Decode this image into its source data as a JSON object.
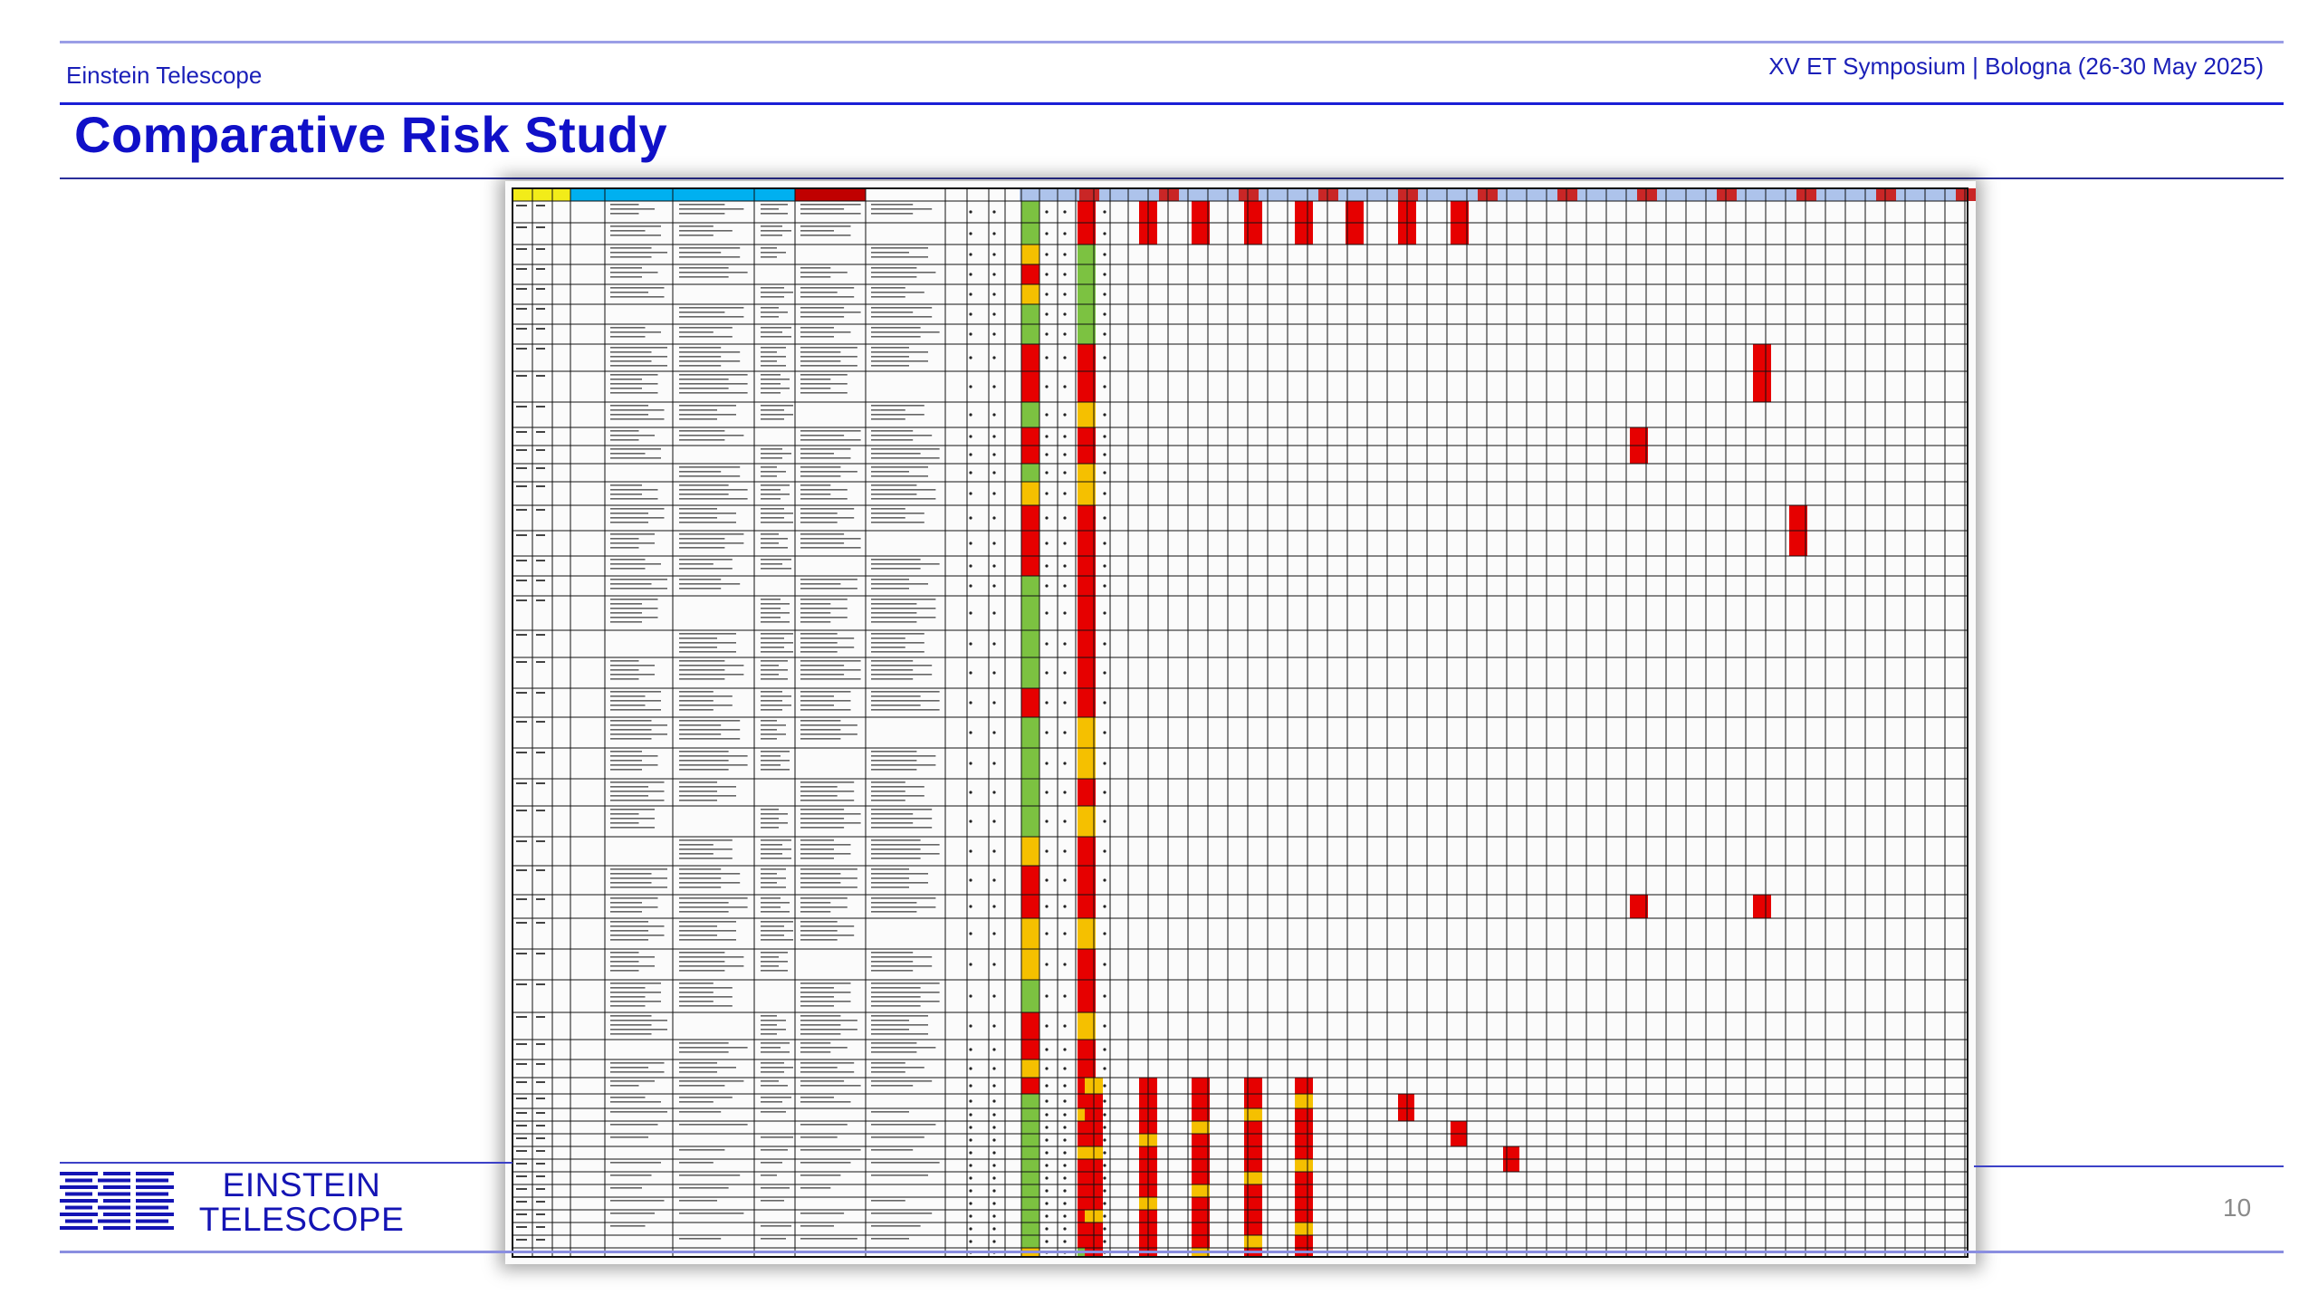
{
  "header": {
    "org_name": "Einstein Telescope",
    "event": "XV ET Symposium | Bologna (26-30 May 2025)"
  },
  "slide": {
    "title": "Comparative Risk Study",
    "page_number": "10"
  },
  "logo": {
    "line1": "EINSTEIN",
    "line2": "TELESCOPE"
  },
  "colors": {
    "accent": "#1010c8",
    "rule": "#3c41c7",
    "risk_red": "#e60000",
    "risk_amber": "#f5c000",
    "risk_green": "#7cc241"
  },
  "risk_sheet": {
    "header_colors": [
      "#f2ec19",
      "#f2ec19",
      "#f2ec19",
      "#00b0f0",
      "#00b0f0",
      "#00b0f0",
      "#00b0f0",
      "#c00000"
    ],
    "col_a_rating": [
      "g",
      "g",
      "a",
      "r",
      "a",
      "g",
      "g",
      "r",
      "r",
      "g",
      "r",
      "r",
      "g",
      "a",
      "r",
      "r",
      "r",
      "g",
      "g",
      "g",
      "g",
      "r",
      "g",
      "g",
      "g",
      "g",
      "a",
      "r",
      "r",
      "a",
      "a",
      "g",
      "r",
      "r",
      "a",
      "r",
      "g",
      "g",
      "g",
      "g",
      "g",
      "g",
      "g",
      "g",
      "g",
      "g"
    ],
    "col_b_rating": [
      "r",
      "r",
      "g",
      "g",
      "g",
      "g",
      "g",
      "r",
      "r",
      "a",
      "r",
      "r",
      "a",
      "a",
      "r",
      "r",
      "r",
      "r",
      "r",
      "r",
      "r",
      "r",
      "a",
      "a",
      "r",
      "a",
      "r",
      "r",
      "r",
      "a",
      "r",
      "r",
      "a",
      "r",
      "r",
      "r",
      "r",
      "a",
      "r",
      "r",
      "a",
      "r",
      "r",
      "r",
      "r",
      "r"
    ]
  }
}
